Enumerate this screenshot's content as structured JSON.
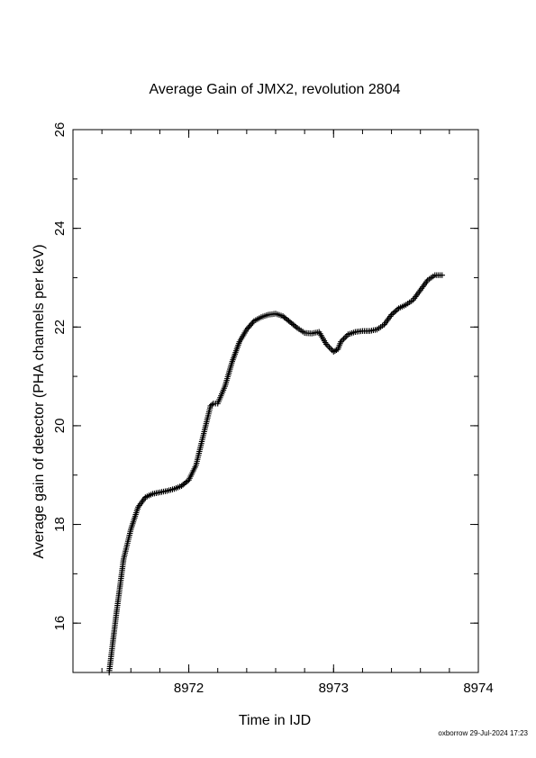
{
  "chart_data": {
    "type": "scatter",
    "title": "Average Gain of JMX2, revolution 2804",
    "xlabel": "Time in IJD",
    "ylabel": "Average gain of detector (PHA channels per keV)",
    "xlim": [
      8971.2,
      8974.0
    ],
    "ylim": [
      15.0,
      26.0
    ],
    "x_ticks": [
      8972,
      8973,
      8974
    ],
    "y_ticks": [
      16,
      18,
      20,
      22,
      24,
      26
    ],
    "x_minor_step": 0.2,
    "y_minor_step": 1,
    "marker": "plus",
    "grid": false,
    "x": [
      8971.45,
      8971.5,
      8971.55,
      8971.6,
      8971.65,
      8971.7,
      8971.75,
      8971.8,
      8971.85,
      8971.9,
      8971.95,
      8972.0,
      8972.05,
      8972.1,
      8972.15,
      8972.17,
      8972.2,
      8972.25,
      8972.3,
      8972.35,
      8972.4,
      8972.45,
      8972.5,
      8972.55,
      8972.6,
      8972.65,
      8972.7,
      8972.75,
      8972.8,
      8972.85,
      8972.9,
      8972.95,
      8973.0,
      8973.03,
      8973.05,
      8973.1,
      8973.15,
      8973.2,
      8973.25,
      8973.3,
      8973.35,
      8973.4,
      8973.45,
      8973.5,
      8973.55,
      8973.6,
      8973.65,
      8973.7,
      8973.75
    ],
    "y": [
      15.0,
      16.2,
      17.3,
      17.9,
      18.35,
      18.55,
      18.62,
      18.65,
      18.68,
      18.72,
      18.78,
      18.9,
      19.2,
      19.8,
      20.4,
      20.45,
      20.45,
      20.8,
      21.3,
      21.7,
      21.95,
      22.12,
      22.2,
      22.25,
      22.27,
      22.22,
      22.1,
      21.98,
      21.88,
      21.87,
      21.9,
      21.65,
      21.5,
      21.55,
      21.7,
      21.85,
      21.9,
      21.92,
      21.92,
      21.95,
      22.05,
      22.25,
      22.38,
      22.45,
      22.55,
      22.75,
      22.95,
      23.05,
      23.05
    ]
  },
  "footer": "oxborrow 29-Jul-2024 17:23"
}
